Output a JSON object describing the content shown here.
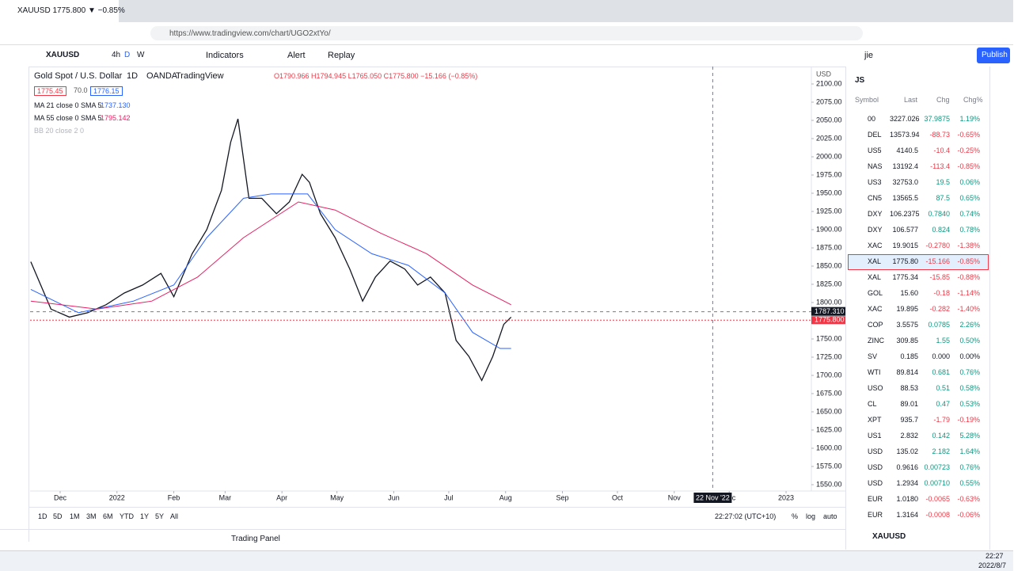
{
  "browser": {
    "tab_title": "XAUUSD 1775.800 ▼ −0.85%",
    "url": "https://www.tradingview.com/chart/UGO2xtYo/"
  },
  "toolbar": {
    "symbol": "XAUUSD",
    "intervals": [
      "4h",
      "D",
      "W"
    ],
    "indicators": "Indicators",
    "alert": "Alert",
    "replay": "Replay",
    "user": "jie",
    "publish": "Publish"
  },
  "legend": {
    "title": "Gold Spot / U.S. Dollar",
    "interval": "1D",
    "source": "OANDA",
    "site": "TradingView",
    "ohlc": "O1790.966 H1794.945 L1765.050 C1775.800 −15.166 (−0.85%)",
    "bid": "1775.45",
    "spread": "70.0",
    "ask": "1776.15",
    "studies": [
      {
        "name": "MA 21 close 0 SMA 5",
        "value": "1737.130",
        "color": "#2962ff"
      },
      {
        "name": "MA 55 close 0 SMA 5",
        "value": "1795.142",
        "color": "#e91e63"
      },
      {
        "name": "BB 20 close 2 0",
        "value": null,
        "color": "#b2b5be"
      }
    ]
  },
  "chart_data": {
    "type": "line",
    "xlim": [
      -16.4,
      409.8
    ],
    "ylim": [
      1541.3,
      2123.9
    ],
    "xticks": [
      {
        "value": 0,
        "label": "Dec"
      },
      {
        "value": 31,
        "label": "2022"
      },
      {
        "value": 62,
        "label": "Feb"
      },
      {
        "value": 90,
        "label": "Mar"
      },
      {
        "value": 121,
        "label": "Apr"
      },
      {
        "value": 151,
        "label": "May"
      },
      {
        "value": 182,
        "label": "Jun"
      },
      {
        "value": 212,
        "label": "Jul"
      },
      {
        "value": 243,
        "label": "Aug"
      },
      {
        "value": 274,
        "label": "Sep"
      },
      {
        "value": 304,
        "label": "Oct"
      },
      {
        "value": 335,
        "label": "Nov"
      },
      {
        "value": 365,
        "label": "Dec"
      },
      {
        "value": 396,
        "label": "2023"
      }
    ],
    "yticks": [
      {
        "value": 2100,
        "label": "2100.00"
      },
      {
        "value": 2075,
        "label": "2075.00"
      },
      {
        "value": 2050,
        "label": "2050.00"
      },
      {
        "value": 2025,
        "label": "2025.00"
      },
      {
        "value": 2000,
        "label": "2000.00"
      },
      {
        "value": 1975,
        "label": "1975.00"
      },
      {
        "value": 1950,
        "label": "1950.00"
      },
      {
        "value": 1925,
        "label": "1925.00"
      },
      {
        "value": 1900,
        "label": "1900.00"
      },
      {
        "value": 1875,
        "label": "1875.00"
      },
      {
        "value": 1850,
        "label": "1850.00"
      },
      {
        "value": 1825,
        "label": "1825.00"
      },
      {
        "value": 1800,
        "label": "1800.00"
      },
      {
        "value": 1750,
        "label": "1750.00"
      },
      {
        "value": 1725,
        "label": "1725.00"
      },
      {
        "value": 1700,
        "label": "1700.00"
      },
      {
        "value": 1675,
        "label": "1675.00"
      },
      {
        "value": 1650,
        "label": "1650.00"
      },
      {
        "value": 1625,
        "label": "1625.00"
      },
      {
        "value": 1600,
        "label": "1600.00"
      },
      {
        "value": 1575,
        "label": "1575.00"
      },
      {
        "value": 1550,
        "label": "1550.00"
      }
    ],
    "axis_unit": "USD",
    "series": [
      {
        "name": "XAUUSD",
        "color": "#131722",
        "x": [
          -16,
          -5,
          5,
          15,
          25,
          35,
          45,
          55,
          62,
          72,
          80,
          88,
          93,
          97,
          103,
          110,
          118,
          125,
          132,
          136,
          142,
          150,
          158,
          165,
          172,
          180,
          188,
          195,
          202,
          210,
          216,
          223,
          230,
          236,
          242,
          246
        ],
        "values": [
          1856,
          1791,
          1780,
          1786,
          1797,
          1813,
          1824,
          1840,
          1808,
          1867,
          1900,
          1954,
          2020,
          2052,
          1943,
          1943,
          1922,
          1938,
          1976,
          1965,
          1922,
          1889,
          1846,
          1802,
          1835,
          1857,
          1846,
          1824,
          1835,
          1813,
          1748,
          1726,
          1693,
          1726,
          1770,
          1780
        ]
      },
      {
        "name": "MA 21",
        "color": "#2962ff",
        "x": [
          -16,
          10,
          40,
          62,
          80,
          100,
          115,
          135,
          150,
          170,
          190,
          210,
          225,
          240,
          246
        ],
        "values": [
          1818,
          1786,
          1802,
          1824,
          1889,
          1943,
          1949,
          1949,
          1900,
          1867,
          1851,
          1813,
          1759,
          1737,
          1737
        ]
      },
      {
        "name": "MA 55",
        "color": "#e91e63",
        "x": [
          -16,
          20,
          50,
          75,
          100,
          130,
          150,
          175,
          200,
          225,
          246
        ],
        "values": [
          1802,
          1791,
          1802,
          1835,
          1889,
          1938,
          1927,
          1895,
          1867,
          1824,
          1797
        ]
      }
    ],
    "crosshair": {
      "x": 356,
      "x_label": "22 Nov '22",
      "y": 1787.31,
      "y_label": "1787.310"
    },
    "last_price": {
      "value": 1775.8,
      "label": "1775.800",
      "color": "#f23645"
    }
  },
  "timeframes": [
    "1D",
    "5D",
    "1M",
    "3M",
    "6M",
    "YTD",
    "1Y",
    "5Y",
    "All"
  ],
  "clock": "22:27:02 (UTC+10)",
  "scale_opts": [
    "%",
    "log",
    "auto"
  ],
  "trading_panel": "Trading Panel",
  "watchlist": {
    "name": "JS",
    "columns": [
      "Symbol",
      "Last",
      "Chg",
      "Chg%"
    ],
    "selected": 9,
    "rows": [
      [
        "00",
        "3227.026",
        "37.9875",
        "1.19%"
      ],
      [
        "DEL",
        "13573.94",
        "-88.73",
        "-0.65%"
      ],
      [
        "US5",
        "4140.5",
        "-10.4",
        "-0.25%"
      ],
      [
        "NAS",
        "13192.4",
        "-113.4",
        "-0.85%"
      ],
      [
        "US3",
        "32753.0",
        "19.5",
        "0.06%"
      ],
      [
        "CN5",
        "13565.5",
        "87.5",
        "0.65%"
      ],
      [
        "DXY",
        "106.2375",
        "0.7840",
        "0.74%"
      ],
      [
        "DXY",
        "106.577",
        "0.824",
        "0.78%"
      ],
      [
        "XAC",
        "19.9015",
        "-0.2780",
        "-1.38%"
      ],
      [
        "XAL",
        "1775.80",
        "-15.166",
        "-0.85%"
      ],
      [
        "XAL",
        "1775.34",
        "-15.85",
        "-0.88%"
      ],
      [
        "GOL",
        "15.60",
        "-0.18",
        "-1.14%"
      ],
      [
        "XAC",
        "19.895",
        "-0.282",
        "-1.40%"
      ],
      [
        "COP",
        "3.5575",
        "0.0785",
        "2.26%"
      ],
      [
        "ZINC",
        "309.85",
        "1.55",
        "0.50%"
      ],
      [
        "SV",
        "0.185",
        "0.000",
        "0.00%"
      ],
      [
        "WTI",
        "89.814",
        "0.681",
        "0.76%"
      ],
      [
        "USO",
        "88.53",
        "0.51",
        "0.58%"
      ],
      [
        "CL",
        "89.01",
        "0.47",
        "0.53%"
      ],
      [
        "XPT",
        "935.7",
        "-1.79",
        "-0.19%"
      ],
      [
        "US1",
        "2.832",
        "0.142",
        "5.28%"
      ],
      [
        "USD",
        "135.02",
        "2.182",
        "1.64%"
      ],
      [
        "USD",
        "0.9616",
        "0.00723",
        "0.76%"
      ],
      [
        "USD",
        "1.2934",
        "0.00710",
        "0.55%"
      ],
      [
        "EUR",
        "1.0180",
        "-0.0065",
        "-0.63%"
      ],
      [
        "EUR",
        "1.3164",
        "-0.0008",
        "-0.06%"
      ]
    ],
    "detail_symbol": "XAUUSD"
  },
  "taskbar": {
    "time": "22:27",
    "date": "2022/8/7"
  }
}
